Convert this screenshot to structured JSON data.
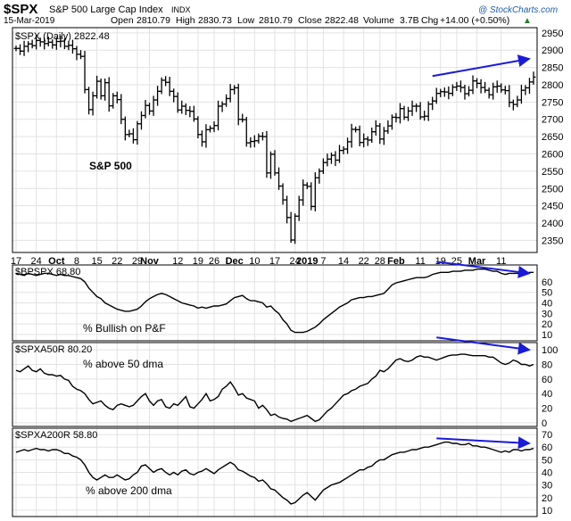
{
  "header": {
    "symbol": "$SPX",
    "name": "S&P 500 Large Cap Index",
    "exchange": "INDX",
    "date": "15-Mar-2019",
    "open_label": "Open",
    "open": "2810.79",
    "high_label": "High",
    "high": "2830.73",
    "low_label": "Low",
    "low": "2810.79",
    "close_label": "Close",
    "close": "2822.48",
    "volume_label": "Volume",
    "volume": "3.7B",
    "chg_label": "Chg",
    "chg": "+14.00 (+0.50%)",
    "credit": "@ StockCharts.com"
  },
  "colors": {
    "price": "#000000",
    "arrow": "#1a1adb",
    "grid": "#e2e2e2",
    "frame": "#000000"
  },
  "chart_data": [
    {
      "type": "line",
      "legend": "$SPX (Daily) 2822.48",
      "annotation": "S&P 500",
      "ylim": [
        2315,
        2965
      ],
      "yticks": [
        2350,
        2400,
        2450,
        2500,
        2550,
        2600,
        2650,
        2700,
        2750,
        2800,
        2850,
        2900,
        2950
      ],
      "x_ticks": [
        {
          "label": "17",
          "i": 0
        },
        {
          "label": "24",
          "i": 5
        },
        {
          "label": "Oct",
          "i": 10
        },
        {
          "label": "8",
          "i": 15
        },
        {
          "label": "15",
          "i": 20
        },
        {
          "label": "22",
          "i": 25
        },
        {
          "label": "29",
          "i": 30
        },
        {
          "label": "Nov",
          "i": 33
        },
        {
          "label": "12",
          "i": 40
        },
        {
          "label": "19",
          "i": 45
        },
        {
          "label": "26",
          "i": 49
        },
        {
          "label": "Dec",
          "i": 54
        },
        {
          "label": "10",
          "i": 59
        },
        {
          "label": "17",
          "i": 64
        },
        {
          "label": "24",
          "i": 69
        },
        {
          "label": "2019",
          "i": 72
        },
        {
          "label": "7",
          "i": 76
        },
        {
          "label": "14",
          "i": 81
        },
        {
          "label": "22",
          "i": 86
        },
        {
          "label": "28",
          "i": 90
        },
        {
          "label": "Feb",
          "i": 94
        },
        {
          "label": "11",
          "i": 100
        },
        {
          "label": "19",
          "i": 105
        },
        {
          "label": "25",
          "i": 109
        },
        {
          "label": "Mar",
          "i": 114
        },
        {
          "label": "11",
          "i": 120
        }
      ],
      "close": [
        2905,
        2897,
        2911,
        2918,
        2913,
        2928,
        2924,
        2919,
        2923,
        2915,
        2925,
        2926,
        2911,
        2914,
        2904,
        2888,
        2882,
        2786,
        2728,
        2768,
        2810,
        2768,
        2806,
        2739,
        2768,
        2757,
        2700,
        2656,
        2658,
        2641,
        2687,
        2711,
        2740,
        2724,
        2756,
        2781,
        2813,
        2807,
        2781,
        2766,
        2727,
        2738,
        2726,
        2723,
        2701,
        2656,
        2635,
        2670,
        2674,
        2682,
        2738,
        2744,
        2760,
        2786,
        2791,
        2700,
        2699,
        2632,
        2636,
        2638,
        2651,
        2650,
        2545,
        2599,
        2545,
        2507,
        2467,
        2416,
        2351,
        2420,
        2467,
        2510,
        2506,
        2448,
        2531,
        2550,
        2575,
        2585,
        2596,
        2582,
        2610,
        2614,
        2635,
        2671,
        2670,
        2633,
        2643,
        2640,
        2664,
        2681,
        2643,
        2666,
        2681,
        2706,
        2705,
        2731,
        2706,
        2724,
        2738,
        2738,
        2707,
        2709,
        2744,
        2753,
        2775,
        2780,
        2779,
        2775,
        2793,
        2796,
        2792,
        2774,
        2784,
        2811,
        2804,
        2792,
        2784,
        2771,
        2794,
        2796,
        2785,
        2783,
        2749,
        2743,
        2756,
        2784,
        2791,
        2808,
        2822
      ],
      "range": [
        2310,
        2820
      ],
      "arrow": {
        "from": [
          103,
          2825
        ],
        "to": [
          127,
          2875
        ]
      }
    },
    {
      "type": "line",
      "legend": "$BPSPX 68.80",
      "annotation": "% Bullish on P&F",
      "ylim": [
        4,
        76
      ],
      "yticks": [
        10,
        20,
        30,
        40,
        50,
        60
      ],
      "values": [
        68,
        67,
        66,
        68,
        67,
        66,
        67,
        68,
        68,
        67,
        66,
        67,
        66,
        66,
        65,
        64,
        63,
        60,
        54,
        50,
        46,
        44,
        40,
        38,
        36,
        34,
        33,
        32,
        32,
        33,
        34,
        37,
        41,
        44,
        46,
        48,
        49,
        48,
        46,
        44,
        42,
        40,
        39,
        38,
        37,
        35,
        36,
        35,
        36,
        37,
        37,
        38,
        39,
        42,
        45,
        46,
        47,
        44,
        42,
        42,
        41,
        40,
        36,
        37,
        33,
        30,
        24,
        20,
        14,
        12,
        12,
        12,
        13,
        15,
        17,
        20,
        24,
        27,
        30,
        33,
        36,
        38,
        40,
        43,
        44,
        45,
        45,
        46,
        46,
        47,
        48,
        49,
        53,
        57,
        59,
        60,
        61,
        62,
        63,
        64,
        64,
        64,
        65,
        67,
        68,
        69,
        69,
        69,
        70,
        70,
        70,
        71,
        71,
        71,
        72,
        72,
        72,
        71,
        70,
        70,
        68,
        67,
        68,
        68,
        68,
        68,
        68,
        69,
        69
      ],
      "arrow": {
        "from": [
          104,
          79
        ],
        "to": [
          127,
          68
        ]
      }
    },
    {
      "type": "line",
      "legend": "$SPXA50R 80.20",
      "annotation": "% above 50 dma",
      "ylim": [
        -5,
        110
      ],
      "yticks": [
        0,
        20,
        40,
        60,
        80,
        100
      ],
      "values": [
        72,
        70,
        74,
        78,
        72,
        70,
        74,
        68,
        66,
        66,
        64,
        65,
        60,
        58,
        50,
        46,
        44,
        40,
        32,
        26,
        28,
        30,
        24,
        20,
        18,
        24,
        26,
        24,
        22,
        24,
        30,
        36,
        40,
        30,
        24,
        30,
        32,
        22,
        20,
        26,
        24,
        30,
        36,
        22,
        20,
        26,
        32,
        40,
        30,
        32,
        36,
        46,
        50,
        56,
        48,
        38,
        40,
        34,
        32,
        30,
        20,
        24,
        18,
        10,
        12,
        8,
        6,
        5,
        2,
        4,
        6,
        8,
        10,
        6,
        2,
        4,
        10,
        16,
        20,
        26,
        32,
        38,
        40,
        44,
        46,
        50,
        52,
        54,
        60,
        64,
        72,
        70,
        74,
        80,
        86,
        88,
        85,
        84,
        86,
        90,
        92,
        90,
        90,
        88,
        86,
        88,
        90,
        92,
        93,
        93,
        94,
        94,
        93,
        92,
        92,
        92,
        92,
        90,
        90,
        86,
        82,
        80,
        82,
        86,
        84,
        80,
        80,
        78,
        80
      ],
      "arrow": {
        "from": [
          104,
          117
        ],
        "to": [
          127,
          100
        ]
      }
    },
    {
      "type": "line",
      "legend": "$SPXA200R 58.80",
      "annotation": "% above 200 dma",
      "ylim": [
        5,
        75
      ],
      "yticks": [
        10,
        20,
        30,
        40,
        50,
        60,
        70
      ],
      "values": [
        56,
        57,
        58,
        57,
        58,
        59,
        58,
        58,
        57,
        58,
        58,
        57,
        55,
        55,
        53,
        52,
        50,
        46,
        40,
        36,
        34,
        36,
        38,
        36,
        36,
        38,
        36,
        34,
        35,
        38,
        40,
        45,
        46,
        43,
        40,
        42,
        43,
        40,
        38,
        40,
        38,
        41,
        42,
        39,
        38,
        40,
        41,
        43,
        41,
        39,
        42,
        44,
        46,
        48,
        46,
        42,
        41,
        39,
        37,
        36,
        33,
        34,
        31,
        27,
        26,
        23,
        20,
        18,
        15,
        16,
        19,
        22,
        24,
        21,
        18,
        22,
        26,
        28,
        30,
        31,
        32,
        34,
        36,
        38,
        40,
        42,
        42,
        44,
        45,
        48,
        50,
        50,
        52,
        54,
        55,
        56,
        56,
        57,
        58,
        58,
        59,
        60,
        60,
        61,
        62,
        63,
        64,
        64,
        63,
        63,
        62,
        62,
        63,
        61,
        61,
        60,
        60,
        59,
        58,
        57,
        56,
        57,
        56,
        58,
        58,
        57,
        58,
        58,
        59
      ],
      "arrow": {
        "from": [
          104,
          67
        ],
        "to": [
          127,
          63
        ]
      }
    }
  ]
}
